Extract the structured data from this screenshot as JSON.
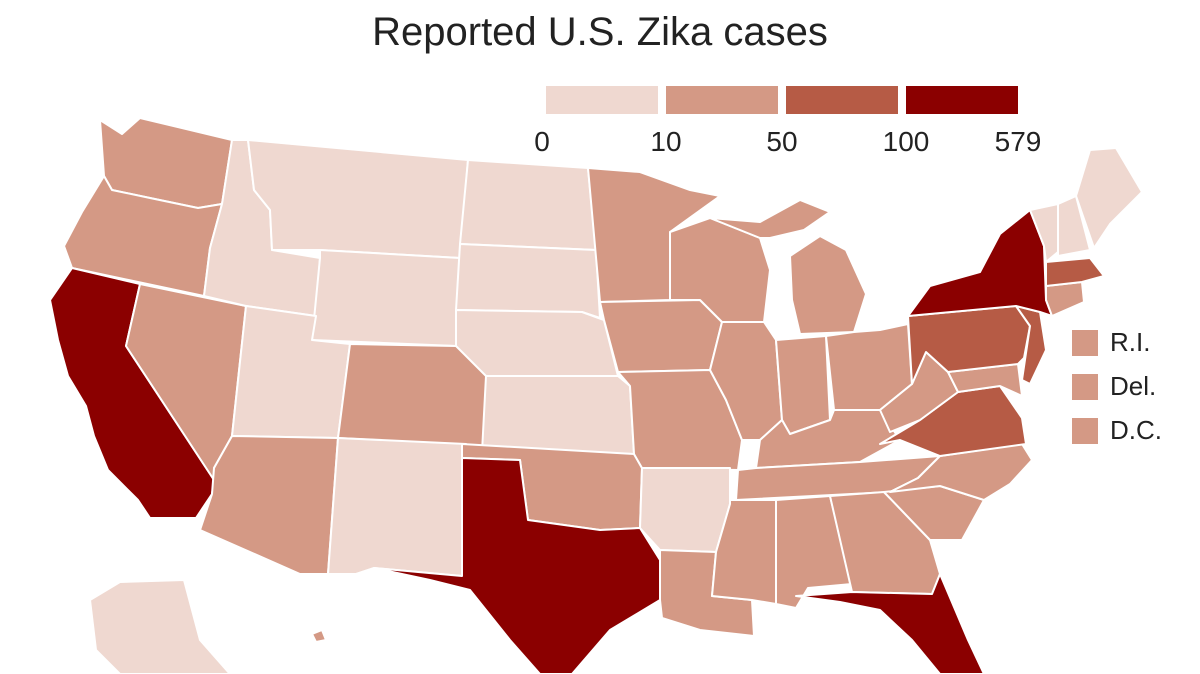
{
  "title": "Reported U.S. Zika cases",
  "colors": {
    "bin0": "#efd8d0",
    "bin1": "#d49985",
    "bin2": "#b65b45",
    "bin3": "#8b0000",
    "stroke": "#ffffff"
  },
  "legend": {
    "ticks": [
      "0",
      "10",
      "50",
      "100",
      "579"
    ],
    "bins": [
      {
        "range": "0-10",
        "color_key": "bin0"
      },
      {
        "range": "10-50",
        "color_key": "bin1"
      },
      {
        "range": "50-100",
        "color_key": "bin2"
      },
      {
        "range": "100-579",
        "color_key": "bin3"
      }
    ]
  },
  "small_states": [
    {
      "label": "R.I.",
      "color_key": "bin1"
    },
    {
      "label": "Del.",
      "color_key": "bin1"
    },
    {
      "label": "D.C.",
      "color_key": "bin1"
    }
  ],
  "states": {
    "WA": "bin1",
    "OR": "bin1",
    "CA": "bin3",
    "NV": "bin1",
    "ID": "bin0",
    "MT": "bin0",
    "WY": "bin0",
    "UT": "bin0",
    "AZ": "bin1",
    "CO": "bin1",
    "NM": "bin0",
    "ND": "bin0",
    "SD": "bin0",
    "NE": "bin0",
    "KS": "bin0",
    "OK": "bin1",
    "TX": "bin3",
    "MN": "bin1",
    "IA": "bin1",
    "MO": "bin1",
    "AR": "bin0",
    "LA": "bin1",
    "WI": "bin1",
    "IL": "bin1",
    "MI": "bin1",
    "IN": "bin1",
    "OH": "bin1",
    "KY": "bin1",
    "TN": "bin1",
    "MS": "bin1",
    "AL": "bin1",
    "GA": "bin1",
    "FL": "bin3",
    "SC": "bin1",
    "NC": "bin1",
    "VA": "bin2",
    "WV": "bin1",
    "MD": "bin1",
    "PA": "bin2",
    "NJ": "bin2",
    "NY": "bin3",
    "CT": "bin1",
    "MA": "bin2",
    "VT": "bin0",
    "NH": "bin0",
    "ME": "bin0",
    "AK": "bin0",
    "HI": "bin1"
  }
}
